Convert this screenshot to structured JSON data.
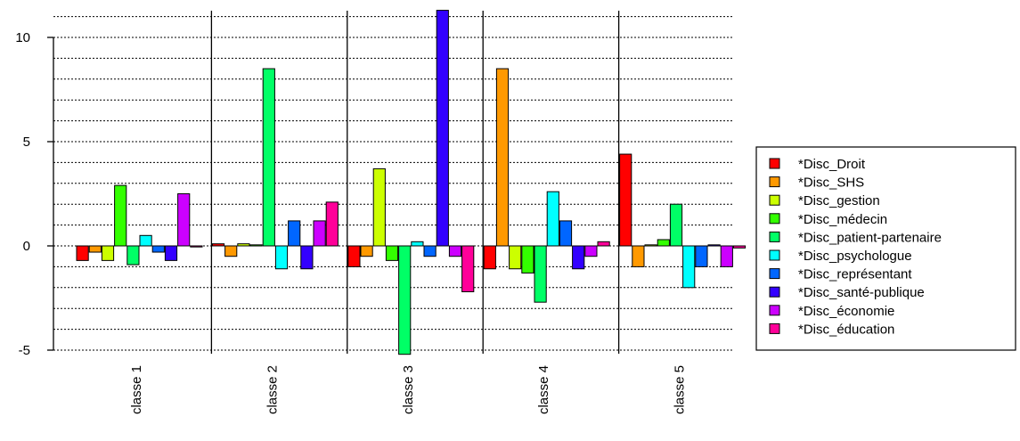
{
  "chart_data": {
    "type": "bar",
    "title": "",
    "xlabel": "",
    "ylabel": "",
    "ylim": [
      -5.2,
      11.3
    ],
    "yticks": [
      -5,
      0,
      5,
      10
    ],
    "grid": "horizontal dotted lines every 1 unit",
    "legend_position": "right",
    "categories": [
      "classe 1",
      "classe 2",
      "classe 3",
      "classe 4",
      "classe 5"
    ],
    "series": [
      {
        "name": "*Disc_Droit",
        "color": "#FF0000",
        "values": [
          -0.7,
          0.1,
          -1.0,
          -1.1,
          4.4
        ]
      },
      {
        "name": "*Disc_SHS",
        "color": "#FF9900",
        "values": [
          -0.3,
          -0.5,
          -0.5,
          8.5,
          -1.0
        ]
      },
      {
        "name": "*Disc_gestion",
        "color": "#CCFF00",
        "values": [
          -0.7,
          0.1,
          3.7,
          -1.1,
          0.05
        ]
      },
      {
        "name": "*Disc_médecin",
        "color": "#33FF00",
        "values": [
          2.9,
          0.05,
          -0.7,
          -1.3,
          0.3
        ]
      },
      {
        "name": "*Disc_patient-partenaire",
        "color": "#00FF66",
        "values": [
          -0.9,
          8.5,
          -5.2,
          -2.7,
          2.0
        ]
      },
      {
        "name": "*Disc_psychologue",
        "color": "#00FFFF",
        "values": [
          0.5,
          -1.1,
          0.2,
          2.6,
          -2.0
        ]
      },
      {
        "name": "*Disc_représentant",
        "color": "#0066FF",
        "values": [
          -0.3,
          1.2,
          -0.5,
          1.2,
          -1.0
        ]
      },
      {
        "name": "*Disc_santé-publique",
        "color": "#3300FF",
        "values": [
          -0.7,
          -1.1,
          11.3,
          -1.1,
          0.05
        ]
      },
      {
        "name": "*Disc_économie",
        "color": "#CC00FF",
        "values": [
          2.5,
          1.2,
          -0.5,
          -0.5,
          -1.0
        ]
      },
      {
        "name": "*Disc_éducation",
        "color": "#FF0099",
        "values": [
          0.0,
          2.1,
          -2.2,
          0.2,
          -0.1
        ]
      }
    ]
  }
}
